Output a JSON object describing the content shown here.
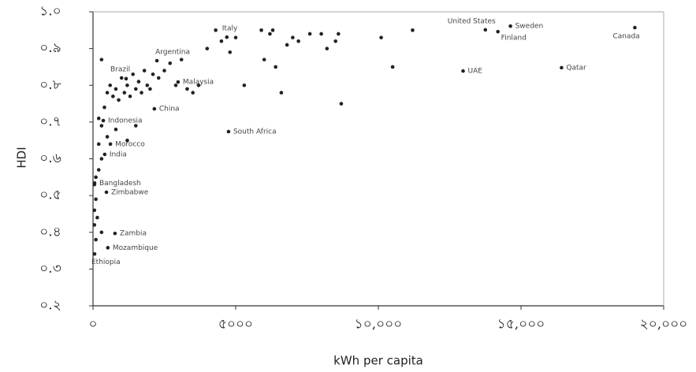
{
  "chart_data": {
    "type": "scatter",
    "x_label": "kWh per capita",
    "y_label": "HDI",
    "xlim": [
      0,
      20000
    ],
    "ylim": [
      0.2,
      1.0
    ],
    "xticks": [
      {
        "value": 0,
        "label": "০"
      },
      {
        "value": 5000,
        "label": "৫০০০"
      },
      {
        "value": 10000,
        "label": "১০,০০০"
      },
      {
        "value": 15000,
        "label": "১৫,০০০"
      },
      {
        "value": 20000,
        "label": "২০,০০০"
      }
    ],
    "yticks": [
      {
        "value": 1.0,
        "label": "১.০"
      },
      {
        "value": 0.9,
        "label": "০.৯"
      },
      {
        "value": 0.8,
        "label": "০.৮"
      },
      {
        "value": 0.7,
        "label": "০.৭"
      },
      {
        "value": 0.6,
        "label": "০.৬"
      },
      {
        "value": 0.5,
        "label": "০.৫"
      },
      {
        "value": 0.4,
        "label": "০.৪"
      },
      {
        "value": 0.3,
        "label": "০.৩"
      },
      {
        "value": 0.2,
        "label": "০.২"
      }
    ],
    "color": "#222222",
    "x": [
      13750,
      14630,
      14190,
      18990,
      16420,
      12970,
      4690,
      2240,
      1160,
      2980,
      2150,
      4750,
      360,
      610,
      410,
      55,
      470,
      770,
      520,
      55,
      300,
      400,
      500,
      600,
      700,
      800,
      900,
      1000,
      1100,
      1200,
      1300,
      1400,
      1500,
      1600,
      1700,
      1800,
      1900,
      2000,
      2100,
      2300,
      2500,
      2700,
      2900,
      3100,
      3300,
      3500,
      3700,
      4000,
      4300,
      4500,
      4800,
      5000,
      5300,
      5900,
      6000,
      6200,
      6300,
      6400,
      6600,
      6800,
      7000,
      7200,
      7600,
      8000,
      8200,
      8600,
      8500,
      8700,
      10100,
      10500,
      11200,
      200,
      300,
      500,
      800,
      1200,
      1500,
      200,
      100,
      50,
      100,
      50,
      150,
      50,
      300,
      100,
      200,
      300
    ],
    "values": [
      0.951,
      0.961,
      0.946,
      0.957,
      0.848,
      0.839,
      0.931,
      0.867,
      0.818,
      0.809,
      0.736,
      0.674,
      0.704,
      0.64,
      0.612,
      0.534,
      0.509,
      0.397,
      0.358,
      0.341,
      0.87,
      0.74,
      0.78,
      0.8,
      0.77,
      0.79,
      0.76,
      0.82,
      0.78,
      0.8,
      0.77,
      0.83,
      0.79,
      0.81,
      0.78,
      0.84,
      0.8,
      0.79,
      0.83,
      0.82,
      0.84,
      0.86,
      0.8,
      0.87,
      0.79,
      0.78,
      0.8,
      0.9,
      0.95,
      0.92,
      0.89,
      0.93,
      0.8,
      0.95,
      0.87,
      0.94,
      0.95,
      0.85,
      0.78,
      0.91,
      0.93,
      0.92,
      0.94,
      0.94,
      0.9,
      0.94,
      0.92,
      0.75,
      0.93,
      0.85,
      0.95,
      0.71,
      0.69,
      0.66,
      0.68,
      0.65,
      0.69,
      0.57,
      0.55,
      0.53,
      0.49,
      0.46,
      0.44,
      0.42,
      0.4,
      0.38,
      0.64,
      0.6
    ],
    "point_labels": [
      "United States",
      "Sweden",
      "Finland",
      "Canada",
      "Qatar",
      "UAE",
      "Italy",
      "Argentina",
      "Brazil",
      "Malaysia",
      "China",
      "South Africa",
      "Indonesia",
      "Morocco",
      "India",
      "Bangladesh",
      "Zimbabwe",
      "Zambia",
      "Mozambique",
      "Ethiopia",
      null,
      null,
      null,
      null,
      null,
      null,
      null,
      null,
      null,
      null,
      null,
      null,
      null,
      null,
      null,
      null,
      null,
      null,
      null,
      null,
      null,
      null,
      null,
      null,
      null,
      null,
      null,
      null,
      null,
      null,
      null,
      null,
      null,
      null,
      null,
      null,
      null,
      null,
      null,
      null,
      null,
      null,
      null,
      null,
      null,
      null,
      null,
      null,
      null,
      null,
      null,
      null,
      null,
      null,
      null,
      null,
      null,
      null,
      null,
      null,
      null,
      null,
      null,
      null,
      null,
      null,
      null,
      null
    ]
  }
}
